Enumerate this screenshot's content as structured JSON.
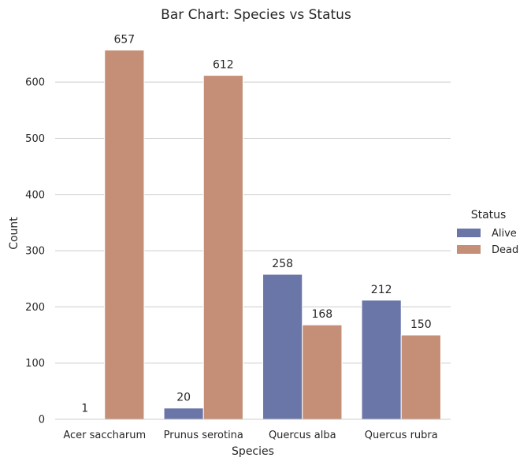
{
  "chart_data": {
    "type": "bar",
    "title": "Bar Chart: Species vs Status",
    "xlabel": "Species",
    "ylabel": "Count",
    "categories": [
      "Acer saccharum",
      "Prunus serotina",
      "Quercus alba",
      "Quercus rubra"
    ],
    "series": [
      {
        "name": "Alive",
        "values": [
          1,
          20,
          258,
          212
        ],
        "color": "#6A76A8"
      },
      {
        "name": "Dead",
        "values": [
          657,
          612,
          168,
          150
        ],
        "color": "#C48F76"
      }
    ],
    "ylim": [
      0,
      690
    ],
    "yticks": [
      0,
      100,
      200,
      300,
      400,
      500,
      600
    ],
    "grid": "horizontal",
    "legend": {
      "title": "Status",
      "placement": "right"
    }
  }
}
